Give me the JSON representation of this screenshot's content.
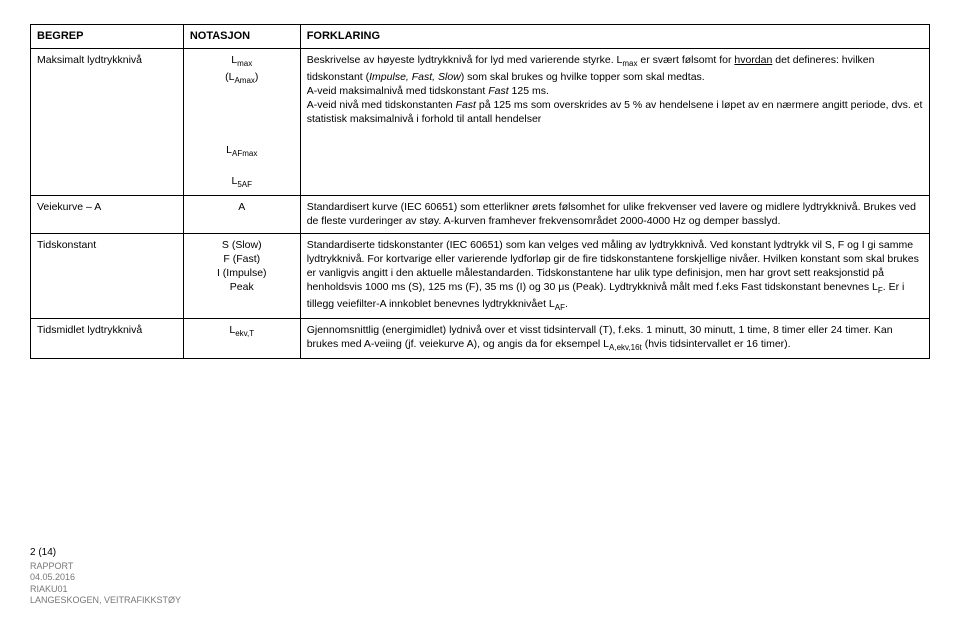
{
  "headers": {
    "c1": "BEGREP",
    "c2": "NOTASJON",
    "c3": "FORKLARING"
  },
  "rows": [
    {
      "begrep": "Maksimalt lydtrykknivå",
      "notasjon_html": "L<span class='sub'>max</span><br>(L<span class='sub'>Amax</span>)<br><br><br><br><br>L<span class='sub'>AFmax</span><br><br>L<span class='sub'>5AF</span>",
      "forklaring_html": "Beskrivelse av høyeste lydtrykknivå for lyd med varierende styrke. L<span class='sub'>max</span> er svært følsomt for <span class='under'>hvordan</span> det defineres: hvilken tidskonstant (<i>Impulse, Fast, Slow</i>) som skal brukes og hvilke topper som skal medtas.<br>A-veid maksimalnivå med tidskonstant <i>Fast</i> 125 ms.<br>A-veid nivå med tidskonstanten <i>Fast</i> på 125 ms som overskrides av 5 % av hendelsene i løpet av en nærmere angitt periode, dvs. et statistisk maksimalnivå i forhold til antall hendelser"
    },
    {
      "begrep": "Veiekurve – A",
      "notasjon_html": "A",
      "forklaring_html": "Standardisert kurve (IEC 60651) som etterlikner ørets følsomhet for ulike frekvenser ved lavere og midlere lydtrykknivå. Brukes ved de fleste vurderinger av støy. A-kurven framhever frekvensområdet 2000-4000 Hz og demper basslyd."
    },
    {
      "begrep": "Tidskonstant",
      "notasjon_html": "S (Slow)<br>F (Fast)<br>I (Impulse)<br>Peak",
      "forklaring_html": "Standardiserte tidskonstanter (IEC 60651) som kan velges ved måling av lydtrykknivå. Ved konstant lydtrykk vil S, F og I gi samme lydtrykknivå. For kortvarige eller varierende lydforløp gir de fire tidskonstantene forskjellige nivåer. Hvilken konstant som skal brukes er vanligvis angitt i den aktuelle målestandarden. Tidskonstantene har ulik type definisjon, men har grovt sett reaksjonstid på henholdsvis 1000 ms (S), 125 ms (F), 35 ms (I) og 30 μs (Peak). Lydtrykknivå målt med f.eks Fast tidskonstant benevnes L<span class='sub'>F</span>. Er i tillegg veiefilter-A innkoblet benevnes lydtrykknivået L<span class='sub'>AF</span>."
    },
    {
      "begrep": "Tidsmidlet lydtrykknivå",
      "notasjon_html": "L<span class='sub'>ekv,T</span>",
      "forklaring_html": "Gjennomsnittlig (energimidlet) lydnivå over et visst tidsintervall (T), f.eks. 1 minutt, 30 minutt, 1 time, 8 timer eller 24 timer. Kan brukes med A-veiing (jf. veiekurve A), og angis da for eksempel L<span class='sub'>A,ekv,16t</span> (hvis tidsintervallet er 16 timer)."
    }
  ],
  "footer": {
    "page": "2 (14)",
    "l1": "RAPPORT",
    "l2": "04.05.2016",
    "l3": "RIAKU01",
    "l4": "LANGESKOGEN, VEITRAFIKKSTØY"
  }
}
